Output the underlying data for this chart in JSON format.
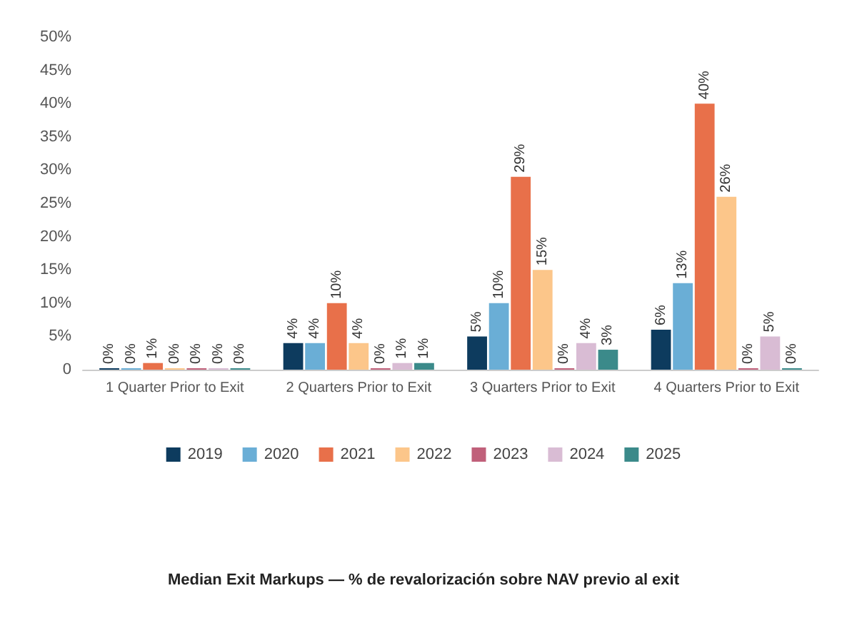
{
  "chart_data": {
    "type": "bar",
    "title": "Median Exit Markups — % de revalorización sobre NAV previo al exit",
    "categories": [
      "1 Quarter Prior to Exit",
      "2 Quarters Prior to Exit",
      "3 Quarters Prior to Exit",
      "4 Quarters Prior to Exit"
    ],
    "series": [
      {
        "name": "2019",
        "color": "#0d3b5e",
        "values": [
          0,
          4,
          5,
          6
        ],
        "value_labels": [
          "0%",
          "4%",
          "5%",
          "6%"
        ]
      },
      {
        "name": "2020",
        "color": "#6aaed6",
        "values": [
          0,
          4,
          10,
          13
        ],
        "value_labels": [
          "0%",
          "4%",
          "10%",
          "13%"
        ]
      },
      {
        "name": "2021",
        "color": "#e8704a",
        "values": [
          1,
          10,
          29,
          40
        ],
        "value_labels": [
          "1%",
          "10%",
          "29%",
          "40%"
        ]
      },
      {
        "name": "2022",
        "color": "#fcc68a",
        "values": [
          0,
          4,
          15,
          26
        ],
        "value_labels": [
          "0%",
          "4%",
          "15%",
          "26%"
        ]
      },
      {
        "name": "2023",
        "color": "#c0607a",
        "values": [
          0,
          0,
          0,
          0
        ],
        "value_labels": [
          "0%",
          "0%",
          "0%",
          "0%"
        ]
      },
      {
        "name": "2024",
        "color": "#d9bcd4",
        "values": [
          0,
          1,
          4,
          5
        ],
        "value_labels": [
          "0%",
          "1%",
          "4%",
          "5%"
        ]
      },
      {
        "name": "2025",
        "color": "#3b8a8a",
        "values": [
          0,
          1,
          3,
          0
        ],
        "value_labels": [
          "0%",
          "1%",
          "3%",
          "0%"
        ]
      }
    ],
    "ylim": [
      0,
      50
    ],
    "yticks": [
      0,
      {
        "value": 5,
        "label": "5%"
      },
      {
        "value": 10,
        "label": "10%"
      },
      {
        "value": 15,
        "label": "15%"
      },
      {
        "value": 20,
        "label": "20%"
      },
      {
        "value": 25,
        "label": "25%"
      },
      {
        "value": 30,
        "label": "30%"
      },
      {
        "value": 35,
        "label": "35%"
      },
      {
        "value": 40,
        "label": "40%"
      },
      {
        "value": 45,
        "label": "45%"
      },
      {
        "value": 50,
        "label": "50%"
      }
    ],
    "grid": false,
    "legend": "bottom"
  }
}
